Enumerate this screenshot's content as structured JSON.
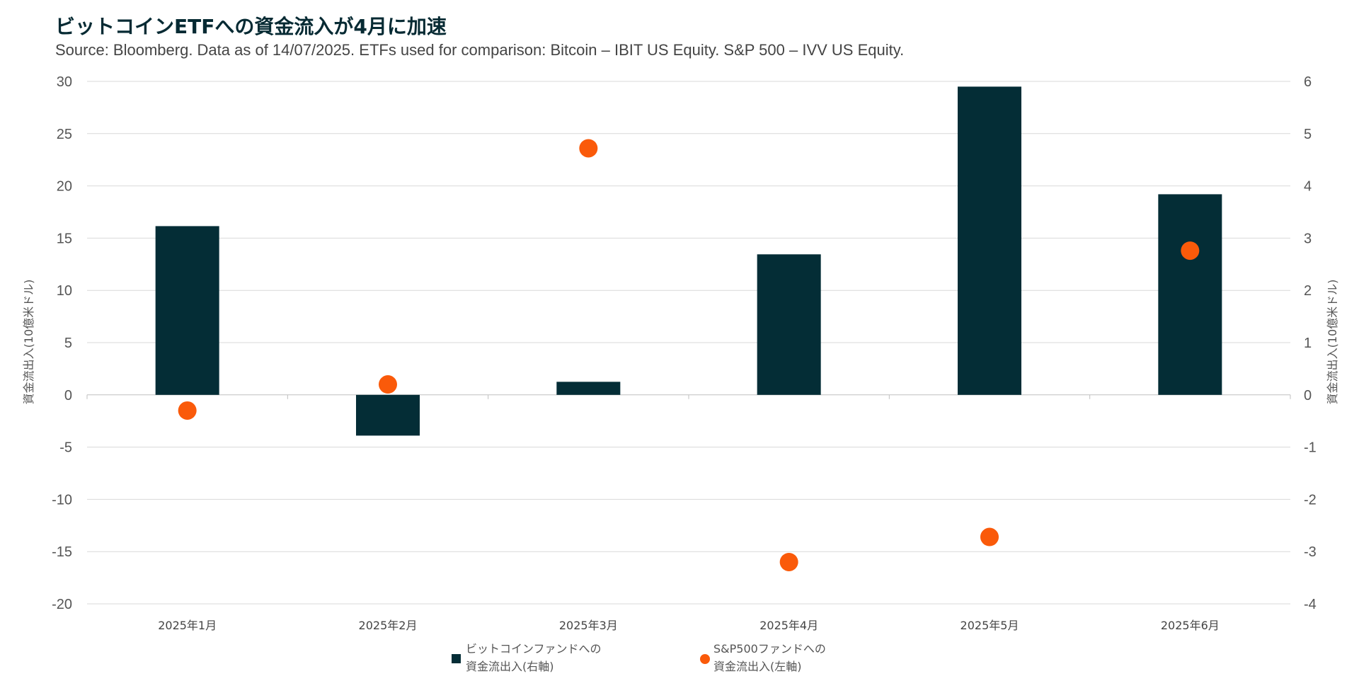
{
  "title": "ビットコインETFへの資金流入が4月に加速",
  "subtitle": "Source: Bloomberg. Data as of 14/07/2025. ETFs used for comparison: Bitcoin – IBIT US Equity. S&P 500 – IVV US Equity.",
  "colors": {
    "bitcoin": "#042d36",
    "sp500": "#fa5a0a",
    "grid": "#d9d9d9"
  },
  "chart_data": {
    "type": "bar",
    "categories": [
      "2025年1月",
      "2025年2月",
      "2025年3月",
      "2025年4月",
      "2025年5月",
      "2025年6月"
    ],
    "left_axis": {
      "label": "資金流出入(10億米ドル)",
      "range": [
        -20,
        30
      ],
      "ticks": [
        "30",
        "25",
        "20",
        "15",
        "10",
        "5",
        "0",
        "-5",
        "-10",
        "-15",
        "-20"
      ]
    },
    "right_axis": {
      "label": "資金流出入(10億米ドル)",
      "range": [
        -4,
        6
      ],
      "ticks": [
        "6",
        "5",
        "4",
        "3",
        "2",
        "1",
        "0",
        "-1",
        "-2",
        "-3",
        "-4"
      ]
    },
    "series": [
      {
        "name": "ビットコインファンドへの資金流出入(右軸)",
        "legend_lines": [
          "ビットコインファンドへの",
          "資金流出入(右軸)"
        ],
        "type": "bar",
        "axis": "right",
        "values": [
          3.23,
          -0.78,
          0.25,
          2.69,
          5.9,
          3.84
        ]
      },
      {
        "name": "S&P500ファンドへの資金流出入(左軸)",
        "legend_lines": [
          "S&P500ファンドへの",
          "資金流出入(左軸)"
        ],
        "type": "scatter",
        "axis": "left",
        "values": [
          -1.5,
          1.0,
          23.6,
          -16.0,
          -13.6,
          13.8
        ]
      }
    ],
    "grid": true,
    "legend_position": "bottom"
  }
}
